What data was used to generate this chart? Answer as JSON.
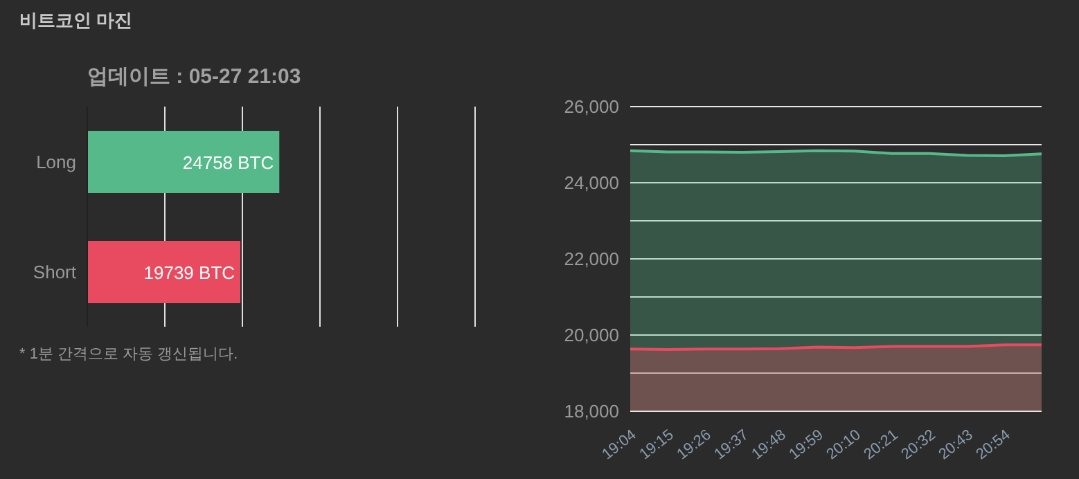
{
  "chart_data": [
    {
      "type": "bar",
      "orientation": "horizontal",
      "title": "비트코인 마진",
      "subtitle": "업데이트 : 05-27 21:03",
      "categories": [
        "Long",
        "Short"
      ],
      "values": [
        24758,
        19739
      ],
      "colors": [
        "#55b98a",
        "#e84a5f"
      ],
      "value_labels": [
        "24758 BTC",
        "19739 BTC"
      ],
      "xlim": [
        0,
        50000
      ],
      "grid": "x",
      "tick_labels": "y",
      "legend": false,
      "annotations": [
        "* 1분 간격으로 자동 갱신됩니다."
      ]
    },
    {
      "type": "area",
      "categories": [
        "19:04",
        "19:15",
        "19:26",
        "19:37",
        "19:48",
        "19:59",
        "20:10",
        "20:21",
        "20:32",
        "20:43",
        "20:54",
        null
      ],
      "series": [
        {
          "color": "#55b98a",
          "values": [
            24840,
            24810,
            24810,
            24800,
            24820,
            24840,
            24830,
            24770,
            24770,
            24720,
            24710,
            24760
          ]
        },
        {
          "color": "#e84a5f",
          "values": [
            19630,
            19620,
            19630,
            19630,
            19640,
            19680,
            19670,
            19700,
            19700,
            19700,
            19740,
            19740
          ]
        }
      ],
      "ylim": [
        18000,
        26000
      ],
      "yticks": [
        {
          "value": 18000,
          "label": "18,000"
        },
        {
          "value": 19000,
          "label": null
        },
        {
          "value": 20000,
          "label": "20,000"
        },
        {
          "value": 21000,
          "label": null
        },
        {
          "value": 22000,
          "label": "22,000"
        },
        {
          "value": 23000,
          "label": null
        },
        {
          "value": 24000,
          "label": "24,000"
        },
        {
          "value": 25000,
          "label": null
        },
        {
          "value": 26000,
          "label": "26,000"
        }
      ],
      "grid": "y",
      "legend": false,
      "marker": "none"
    }
  ]
}
